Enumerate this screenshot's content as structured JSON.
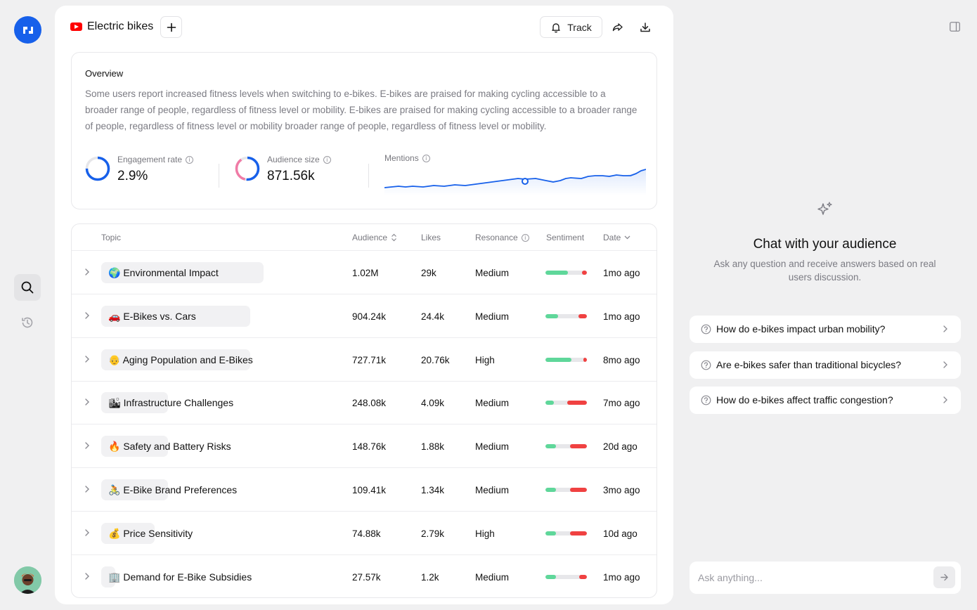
{
  "header": {
    "title": "Electric bikes",
    "track_label": "Track"
  },
  "overview": {
    "title": "Overview",
    "text": "Some users report increased fitness levels when switching to e-bikes. E-bikes are praised for making cycling accessible to a broader range of people, regardless of fitness level or mobility. E-bikes are praised for making cycling accessible to a broader range of people, regardless of fitness level or mobility broader range of people, regardless of fitness level or mobility.",
    "engagement": {
      "label": "Engagement rate",
      "value": "2.9%"
    },
    "audience": {
      "label": "Audience size",
      "value": "871.56k"
    },
    "mentions": {
      "label": "Mentions"
    }
  },
  "table": {
    "headers": {
      "topic": "Topic",
      "audience": "Audience",
      "likes": "Likes",
      "resonance": "Resonance",
      "sentiment": "Sentiment",
      "date": "Date"
    },
    "rows": [
      {
        "emoji": "🌍",
        "topic": "Environmental Impact",
        "audience": "1.02M",
        "likes": "29k",
        "resonance": "Medium",
        "date": "1mo ago",
        "sentiment_pos": 0.55,
        "sentiment_neg": 0.12
      },
      {
        "emoji": "🚗",
        "topic": "E-Bikes vs. Cars",
        "audience": "904.24k",
        "likes": "24.4k",
        "resonance": "Medium",
        "date": "1mo ago",
        "sentiment_pos": 0.3,
        "sentiment_neg": 0.2
      },
      {
        "emoji": "👴",
        "topic": "Aging Population and E-Bikes",
        "audience": "727.71k",
        "likes": "20.76k",
        "resonance": "High",
        "date": "8mo ago",
        "sentiment_pos": 0.62,
        "sentiment_neg": 0.08
      },
      {
        "emoji": "🏙",
        "topic": "Infrastructure Challenges",
        "audience": "248.08k",
        "likes": "4.09k",
        "resonance": "Medium",
        "date": "7mo ago",
        "sentiment_pos": 0.2,
        "sentiment_neg": 0.47
      },
      {
        "emoji": "🔥",
        "topic": "Safety and Battery Risks",
        "audience": "148.76k",
        "likes": "1.88k",
        "resonance": "Medium",
        "date": "20d ago",
        "sentiment_pos": 0.25,
        "sentiment_neg": 0.4
      },
      {
        "emoji": "🚴",
        "topic": "E-Bike Brand Preferences",
        "audience": "109.41k",
        "likes": "1.34k",
        "resonance": "Medium",
        "date": "3mo ago",
        "sentiment_pos": 0.25,
        "sentiment_neg": 0.4
      },
      {
        "emoji": "💰",
        "topic": "Price Sensitivity",
        "audience": "74.88k",
        "likes": "2.79k",
        "resonance": "High",
        "date": "10d ago",
        "sentiment_pos": 0.25,
        "sentiment_neg": 0.4
      },
      {
        "emoji": "🏢",
        "topic": "Demand for E-Bike Subsidies",
        "audience": "27.57k",
        "likes": "1.2k",
        "resonance": "Medium",
        "date": "1mo ago",
        "sentiment_pos": 0.25,
        "sentiment_neg": 0.18
      }
    ]
  },
  "chat": {
    "title": "Chat with your audience",
    "subtitle": "Ask any question and receive answers based on real users discussion.",
    "suggestions": [
      "How do e-bikes impact urban mobility?",
      "Are e-bikes safer than traditional bicycles?",
      "How do e-bikes affect traffic congestion?"
    ],
    "placeholder": "Ask anything..."
  },
  "icons": {
    "logo": "app-logo-icon",
    "search": "search-icon",
    "history": "history-icon",
    "add": "plus-icon",
    "bell": "bell-icon",
    "share": "share-icon",
    "download": "download-icon",
    "panel": "panel-toggle-icon",
    "sparkle": "sparkle-icon"
  },
  "colors": {
    "accent": "#1760ea",
    "positive": "#5fd79a",
    "negative": "#f04141"
  }
}
